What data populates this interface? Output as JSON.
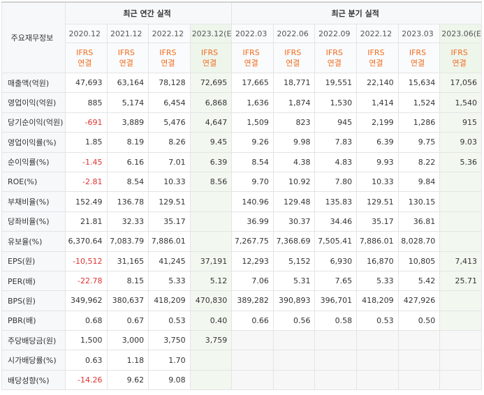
{
  "table": {
    "corner_label": "주요재무정보",
    "annual_header": "최근 연간 실적",
    "quarter_header": "최근 분기 실적",
    "annual_periods": [
      "2020.12",
      "2021.12",
      "2022.12",
      "2023.12(E)"
    ],
    "quarter_periods": [
      "2022.03",
      "2022.06",
      "2022.09",
      "2022.12",
      "2023.03",
      "2023.06(E)"
    ],
    "basis_line1": "IFRS",
    "basis_line2": "연결",
    "rows": [
      {
        "label": "매출액(억원)",
        "annual": [
          "47,693",
          "63,164",
          "78,128",
          "72,695"
        ],
        "quarter": [
          "17,665",
          "18,771",
          "19,551",
          "22,140",
          "15,634",
          "17,056"
        ]
      },
      {
        "label": "영업이익(억원)",
        "annual": [
          "885",
          "5,174",
          "6,454",
          "6,868"
        ],
        "quarter": [
          "1,636",
          "1,874",
          "1,530",
          "1,414",
          "1,524",
          "1,540"
        ]
      },
      {
        "label": "당기순이익(억원)",
        "annual": [
          "-691",
          "3,889",
          "5,476",
          "4,647"
        ],
        "quarter": [
          "1,509",
          "823",
          "945",
          "2,199",
          "1,286",
          "915"
        ]
      },
      {
        "label": "영업이익률(%)",
        "annual": [
          "1.85",
          "8.19",
          "8.26",
          "9.45"
        ],
        "quarter": [
          "9.26",
          "9.98",
          "7.83",
          "6.39",
          "9.75",
          "9.03"
        ]
      },
      {
        "label": "순이익률(%)",
        "annual": [
          "-1.45",
          "6.16",
          "7.01",
          "6.39"
        ],
        "quarter": [
          "8.54",
          "4.38",
          "4.83",
          "9.93",
          "8.22",
          "5.36"
        ]
      },
      {
        "label": "ROE(%)",
        "annual": [
          "-2.81",
          "8.54",
          "10.33",
          "8.56"
        ],
        "quarter": [
          "9.70",
          "10.92",
          "7.80",
          "10.33",
          "9.84",
          ""
        ]
      },
      {
        "label": "부채비율(%)",
        "annual": [
          "152.49",
          "136.78",
          "129.51",
          ""
        ],
        "quarter": [
          "140.96",
          "129.48",
          "135.83",
          "129.51",
          "130.15",
          ""
        ]
      },
      {
        "label": "당좌비율(%)",
        "annual": [
          "21.81",
          "32.33",
          "35.17",
          ""
        ],
        "quarter": [
          "36.99",
          "30.37",
          "34.46",
          "35.17",
          "36.81",
          ""
        ]
      },
      {
        "label": "유보율(%)",
        "annual": [
          "6,370.64",
          "7,083.79",
          "7,886.01",
          ""
        ],
        "quarter": [
          "7,267.75",
          "7,368.69",
          "7,505.41",
          "7,886.01",
          "8,028.70",
          ""
        ]
      },
      {
        "label": "EPS(원)",
        "annual": [
          "-10,512",
          "31,165",
          "41,245",
          "37,191"
        ],
        "quarter": [
          "12,293",
          "5,152",
          "6,930",
          "16,870",
          "10,805",
          "7,413"
        ]
      },
      {
        "label": "PER(배)",
        "annual": [
          "-22.78",
          "8.15",
          "5.33",
          "5.12"
        ],
        "quarter": [
          "7.06",
          "5.31",
          "7.65",
          "5.33",
          "5.42",
          "25.71"
        ]
      },
      {
        "label": "BPS(원)",
        "annual": [
          "349,962",
          "380,637",
          "418,209",
          "470,830"
        ],
        "quarter": [
          "389,282",
          "390,893",
          "396,701",
          "418,209",
          "427,926",
          ""
        ]
      },
      {
        "label": "PBR(배)",
        "annual": [
          "0.68",
          "0.67",
          "0.53",
          "0.40"
        ],
        "quarter": [
          "0.66",
          "0.56",
          "0.58",
          "0.53",
          "0.50",
          ""
        ]
      },
      {
        "label": "주당배당금(원)",
        "annual": [
          "1,500",
          "3,000",
          "3,750",
          "3,759"
        ],
        "quarter": [
          "",
          "",
          "",
          "",
          "",
          ""
        ]
      },
      {
        "label": "시가배당률(%)",
        "annual": [
          "0.63",
          "1.18",
          "1.70",
          ""
        ],
        "quarter": [
          "",
          "",
          "",
          "",
          "",
          ""
        ]
      },
      {
        "label": "배당성향(%)",
        "annual": [
          "-14.26",
          "9.62",
          "9.08",
          ""
        ],
        "quarter": [
          "",
          "",
          "",
          "",
          "",
          ""
        ]
      }
    ],
    "colors": {
      "negative": "#e03131",
      "basis": "#f26b1d",
      "estimate_bg": "#f2f8f0"
    }
  }
}
